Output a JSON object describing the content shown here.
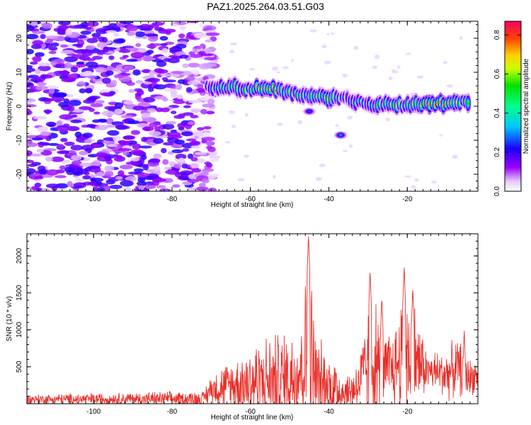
{
  "title": "PAZ1.2025.264.03.51.G03",
  "chart_data": [
    {
      "type": "heatmap",
      "xlabel": "Height of straight line (km)",
      "ylabel": "Frequency (Hz)",
      "xlim": [
        -117,
        -2
      ],
      "ylim": [
        -25,
        25
      ],
      "xticks": [
        -100,
        -80,
        -60,
        -40,
        -20
      ],
      "yticks": [
        -20,
        -10,
        0,
        10,
        20
      ],
      "xtick_labels": [
        "-100",
        "-80",
        "-60",
        "-40",
        "-20"
      ],
      "ytick_labels": [
        "-20",
        "-10",
        "0",
        "10",
        "20"
      ],
      "colorbar": {
        "label": "Normalized spectral amplitude",
        "range": [
          0,
          0.87
        ],
        "ticks": [
          0.0,
          0.2,
          0.4,
          0.6,
          0.8
        ],
        "tick_labels": [
          "0.0",
          "0.2",
          "0.4",
          "0.6",
          "0.8"
        ]
      },
      "signal_track": [
        {
          "x": -71,
          "y": 5.5,
          "a": 0.35
        },
        {
          "x": -66,
          "y": 5.8,
          "a": 0.45
        },
        {
          "x": -60,
          "y": 5.0,
          "a": 0.5
        },
        {
          "x": -55,
          "y": 5.5,
          "a": 0.8
        },
        {
          "x": -50,
          "y": 4.0,
          "a": 0.5
        },
        {
          "x": -45,
          "y": 3.0,
          "a": 0.45
        },
        {
          "x": -40,
          "y": 2.5,
          "a": 0.6
        },
        {
          "x": -35,
          "y": 2.0,
          "a": 0.3
        },
        {
          "x": -30,
          "y": 0.5,
          "a": 0.45
        },
        {
          "x": -25,
          "y": 0.5,
          "a": 0.6
        },
        {
          "x": -20,
          "y": 0.5,
          "a": 0.55
        },
        {
          "x": -14,
          "y": 0.8,
          "a": 0.85
        },
        {
          "x": -9,
          "y": 1.0,
          "a": 0.6
        },
        {
          "x": -4,
          "y": 1.5,
          "a": 0.55
        }
      ],
      "secondary_features": [
        {
          "x": -37,
          "y": -8.5,
          "a": 0.3
        },
        {
          "x": -45,
          "y": -1.5,
          "a": 0.25
        }
      ]
    },
    {
      "type": "line",
      "xlabel": "Height of straight line (km)",
      "ylabel": "SNR (10 * v/v)",
      "xlim": [
        -117,
        -2
      ],
      "ylim": [
        0,
        2300
      ],
      "xticks": [
        -100,
        -80,
        -60,
        -40,
        -20
      ],
      "yticks": [
        500,
        1000,
        1500,
        2000
      ],
      "xtick_labels": [
        "-100",
        "-80",
        "-60",
        "-40",
        "-20"
      ],
      "ytick_labels": [
        "500",
        "1000",
        "1500",
        "2000"
      ],
      "series_color": "#e8302a",
      "envelope": [
        {
          "x": -117,
          "base": 60,
          "amp": 80
        },
        {
          "x": -72,
          "base": 70,
          "amp": 120
        },
        {
          "x": -70,
          "base": 200,
          "amp": 250
        },
        {
          "x": -65,
          "base": 250,
          "amp": 400
        },
        {
          "x": -60,
          "base": 300,
          "amp": 650
        },
        {
          "x": -55,
          "base": 320,
          "amp": 700
        },
        {
          "x": -50,
          "base": 350,
          "amp": 800
        },
        {
          "x": -47,
          "base": 500,
          "amp": 900
        },
        {
          "x": -45,
          "base": 700,
          "amp": 1550
        },
        {
          "x": -43,
          "base": 300,
          "amp": 700
        },
        {
          "x": -38,
          "base": 200,
          "amp": 500
        },
        {
          "x": -35,
          "base": 150,
          "amp": 300
        },
        {
          "x": -32,
          "base": 300,
          "amp": 500
        },
        {
          "x": -29,
          "base": 600,
          "amp": 1200
        },
        {
          "x": -26,
          "base": 400,
          "amp": 600
        },
        {
          "x": -23,
          "base": 500,
          "amp": 700
        },
        {
          "x": -21,
          "base": 700,
          "amp": 1150
        },
        {
          "x": -18,
          "base": 600,
          "amp": 900
        },
        {
          "x": -15,
          "base": 450,
          "amp": 300
        },
        {
          "x": -10,
          "base": 400,
          "amp": 400
        },
        {
          "x": -7,
          "base": 500,
          "amp": 450
        },
        {
          "x": -4,
          "base": 350,
          "amp": 300
        },
        {
          "x": -2,
          "base": 400,
          "amp": 250
        }
      ],
      "peaks": [
        {
          "x": -45.2,
          "y": 2290
        },
        {
          "x": -29.5,
          "y": 1800
        },
        {
          "x": -20.8,
          "y": 1860
        },
        {
          "x": -18.6,
          "y": 1580
        },
        {
          "x": -26.5,
          "y": 1450
        },
        {
          "x": -5.5,
          "y": 1000
        }
      ]
    }
  ]
}
